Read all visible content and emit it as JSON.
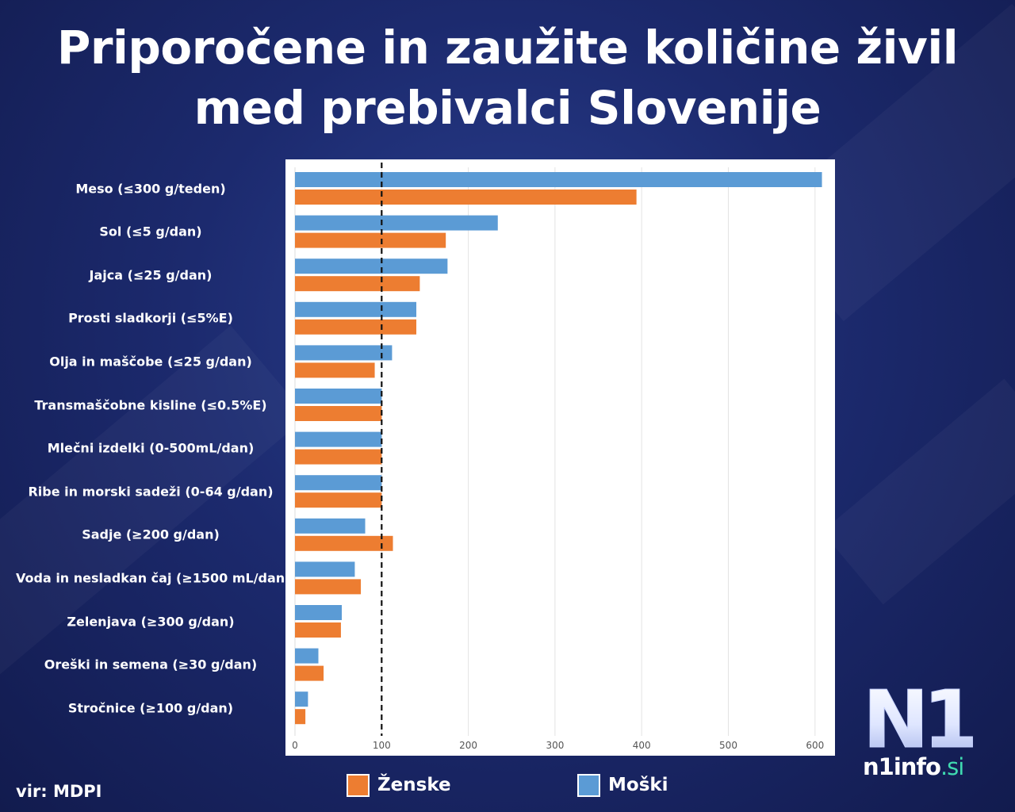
{
  "title": {
    "line1": "Priporočene in zaužite količine živil",
    "line2": "med prebivalci Slovenije"
  },
  "source": "vir: MDPI",
  "legend": {
    "female": "Ženske",
    "male": "Moški"
  },
  "logo": {
    "mark": "N1",
    "text": "n1info",
    "suffix": ".si"
  },
  "colors": {
    "female": "#ed7d31",
    "male": "#5b9bd5",
    "reference_line": "#111111",
    "grid": "#e3e3e3",
    "logo_accent": "#3fd9b0"
  },
  "chart_data": {
    "type": "bar",
    "orientation": "horizontal",
    "title": "Priporočene in zaužite količine živil med prebivalci Slovenije",
    "xlabel": "",
    "ylabel": "",
    "xlim": [
      0,
      620
    ],
    "x_ticks": [
      "0",
      "100",
      "200",
      "300",
      "400",
      "500",
      "600"
    ],
    "grid": true,
    "reference_line": 100,
    "legend_position": "bottom",
    "categories": [
      "Meso (≤300 g/teden)",
      "Sol (≤5 g/dan)",
      "Jajca (≤25 g/dan)",
      "Prosti sladkorji (≤5%E)",
      "Olja in maščobe (≤25 g/dan)",
      "Transmaščobne kisline (≤0.5%E)",
      "Mlečni izdelki  (0-500mL/dan)",
      "Ribe in morski sadeži (0-64 g/dan)",
      "Sadje (≥200 g/dan)",
      "Voda in nesladkan čaj  (≥1500 mL/dan)",
      "Zelenjava (≥300 g/dan)",
      "Oreški in semena (≥30 g/dan)",
      "Stročnice (≥100 g/dan)"
    ],
    "series": [
      {
        "name": "Moški",
        "values": [
          608,
          234,
          176,
          140,
          112,
          100,
          100,
          100,
          81,
          69,
          54,
          27,
          15
        ]
      },
      {
        "name": "Ženske",
        "values": [
          394,
          174,
          144,
          140,
          92,
          100,
          100,
          100,
          113,
          76,
          53,
          33,
          12
        ]
      }
    ]
  }
}
